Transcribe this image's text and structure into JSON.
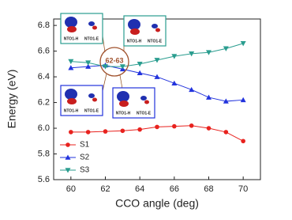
{
  "chart_data": {
    "type": "line",
    "xlabel": "CCO angle (deg)",
    "ylabel": "Energy (eV)",
    "x": [
      60,
      61,
      62,
      63,
      64,
      65,
      66,
      67,
      68,
      69,
      70
    ],
    "series": [
      {
        "name": "S1",
        "color": "#e8221e",
        "marker": "circle",
        "values": [
          5.97,
          5.97,
          5.975,
          5.98,
          5.99,
          6.01,
          6.015,
          6.02,
          6.0,
          5.97,
          5.9
        ]
      },
      {
        "name": "S2",
        "color": "#2233dd",
        "marker": "triangle-up",
        "values": [
          6.47,
          6.48,
          6.49,
          6.46,
          6.43,
          6.4,
          6.35,
          6.3,
          6.24,
          6.21,
          6.22
        ]
      },
      {
        "name": "S3",
        "color": "#2a9d8f",
        "marker": "triangle-down",
        "values": [
          6.52,
          6.51,
          6.48,
          6.48,
          6.5,
          6.53,
          6.56,
          6.58,
          6.59,
          6.62,
          6.66
        ]
      }
    ],
    "xlim": [
      59,
      71
    ],
    "ylim": [
      5.6,
      6.85
    ],
    "xticks": [
      60,
      62,
      64,
      66,
      68,
      70
    ],
    "yticks": [
      5.6,
      5.8,
      {
        "value": 6,
        "label": "6.0"
      },
      6.2,
      6.4,
      6.6,
      6.8
    ],
    "legend": "lower left",
    "annotation": "62-63",
    "insets": [
      {
        "labels": [
          "NTO1-H",
          "NTO1-E"
        ]
      },
      {
        "labels": [
          "NTO1-H",
          "NTO1-E"
        ]
      },
      {
        "labels": [
          "NTO1-H",
          "NTO1-E"
        ]
      },
      {
        "labels": [
          "NTO1-H",
          "NTO1-E"
        ]
      }
    ]
  }
}
